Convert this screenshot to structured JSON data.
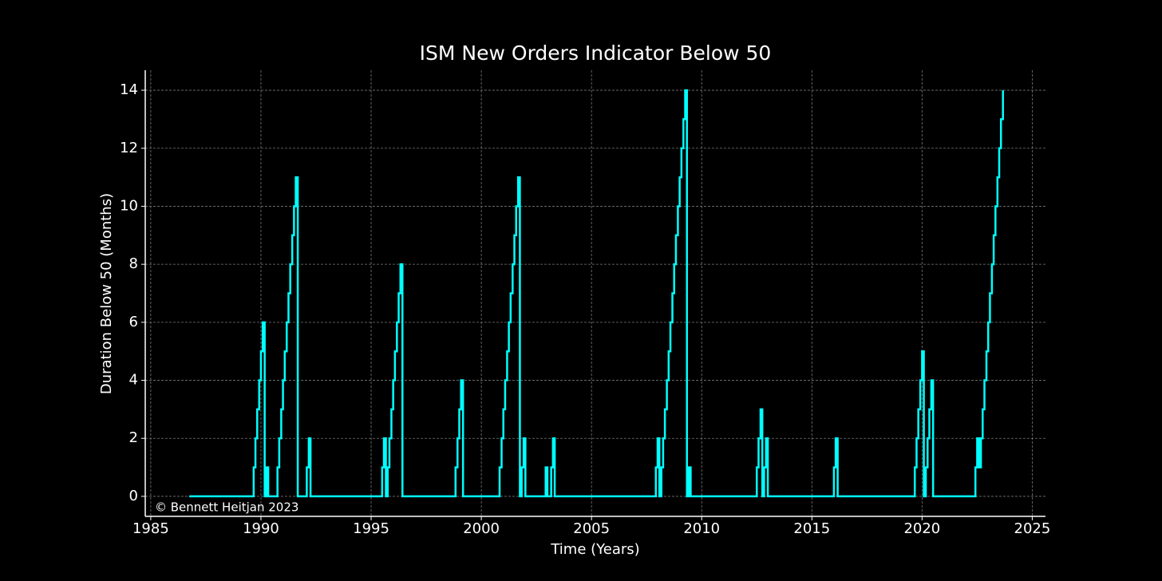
{
  "chart_data": {
    "type": "line",
    "step": "post",
    "title": "ISM New Orders Indicator Below 50",
    "xlabel": "Time (Years)",
    "ylabel": "Duration Below 50 (Months)",
    "annotation": "© Bennett Heitjan 2023",
    "xlim": [
      1984.75,
      2025.6
    ],
    "xticks": [
      1985,
      1990,
      1995,
      2000,
      2005,
      2010,
      2015,
      2020,
      2025
    ],
    "ylim": [
      -0.69,
      14.69
    ],
    "yticks": [
      0,
      2,
      4,
      6,
      8,
      10,
      12,
      14
    ],
    "grid": true,
    "series": [
      {
        "color": "#00ffff",
        "x": [
          1986.75,
          1989.67,
          1989.75,
          1989.83,
          1989.92,
          1990.0,
          1990.08,
          1990.17,
          1990.25,
          1990.33,
          1990.75,
          1990.83,
          1990.92,
          1991.0,
          1991.08,
          1991.17,
          1991.25,
          1991.33,
          1991.42,
          1991.5,
          1991.58,
          1991.67,
          1992.08,
          1992.17,
          1992.25,
          1995.5,
          1995.58,
          1995.67,
          1995.75,
          1995.83,
          1995.92,
          1996.0,
          1996.08,
          1996.17,
          1996.25,
          1996.33,
          1996.42,
          1998.83,
          1998.92,
          1999.0,
          1999.08,
          1999.17,
          2000.83,
          2000.92,
          2001.0,
          2001.08,
          2001.17,
          2001.25,
          2001.33,
          2001.42,
          2001.5,
          2001.58,
          2001.67,
          2001.75,
          2001.83,
          2001.92,
          2002.0,
          2002.92,
          2003.0,
          2003.17,
          2003.25,
          2003.33,
          2007.92,
          2008.0,
          2008.08,
          2008.17,
          2008.25,
          2008.33,
          2008.42,
          2008.5,
          2008.58,
          2008.67,
          2008.75,
          2008.83,
          2008.92,
          2009.0,
          2009.08,
          2009.17,
          2009.25,
          2009.33,
          2009.42,
          2009.5,
          2012.5,
          2012.58,
          2012.67,
          2012.75,
          2012.83,
          2012.92,
          2013.0,
          2016.0,
          2016.08,
          2016.17,
          2019.67,
          2019.75,
          2019.83,
          2019.92,
          2020.0,
          2020.08,
          2020.17,
          2020.25,
          2020.33,
          2020.42,
          2020.5,
          2022.42,
          2022.5,
          2022.58,
          2022.67,
          2022.75,
          2022.83,
          2022.92,
          2023.0,
          2023.08,
          2023.17,
          2023.25,
          2023.33,
          2023.42,
          2023.5,
          2023.58,
          2023.67
        ],
        "values": [
          0,
          1,
          2,
          3,
          4,
          5,
          6,
          0,
          1,
          0,
          1,
          2,
          3,
          4,
          5,
          6,
          7,
          8,
          9,
          10,
          11,
          0,
          1,
          2,
          0,
          1,
          2,
          0,
          1,
          2,
          3,
          4,
          5,
          6,
          7,
          8,
          0,
          1,
          2,
          3,
          4,
          0,
          1,
          2,
          3,
          4,
          5,
          6,
          7,
          8,
          9,
          10,
          11,
          0,
          1,
          2,
          0,
          1,
          0,
          1,
          2,
          0,
          1,
          2,
          0,
          1,
          2,
          3,
          4,
          5,
          6,
          7,
          8,
          9,
          10,
          11,
          12,
          13,
          14,
          0,
          1,
          0,
          1,
          2,
          3,
          0,
          1,
          2,
          0,
          1,
          2,
          0,
          1,
          2,
          3,
          4,
          5,
          0,
          1,
          2,
          3,
          4,
          0,
          1,
          2,
          1,
          2,
          3,
          4,
          5,
          6,
          7,
          8,
          9,
          10,
          11,
          12,
          13,
          14
        ]
      }
    ]
  }
}
